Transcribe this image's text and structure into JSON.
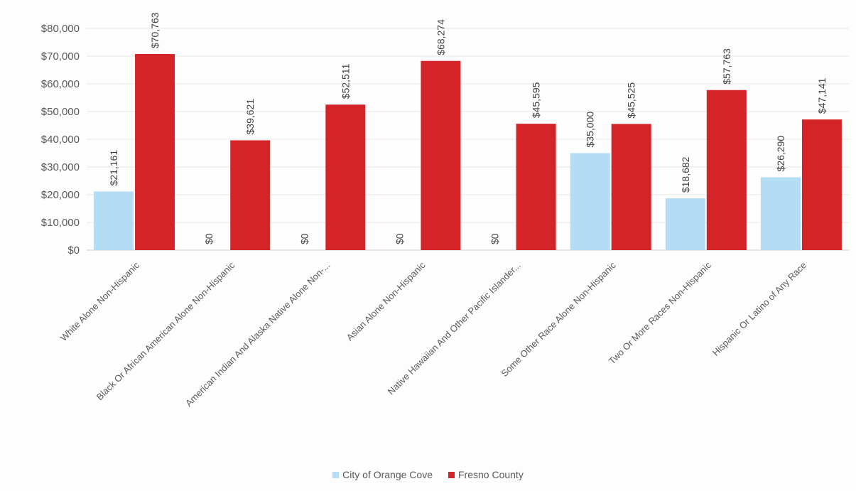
{
  "chart_data": {
    "type": "bar",
    "categories": [
      "White Alone Non-Hispanic",
      "Black Or African American Alone Non-Hispanic",
      "American Indian And Alaska Native Alone Non-...",
      "Asian Alone Non-Hispanic",
      "Native Hawaiian And Other Pacific Islander...",
      "Some Other Race Alone Non-Hispanic",
      "Two Or More Races Non-Hispanic",
      "Hispanic Or Latino of Any Race"
    ],
    "series": [
      {
        "name": "City of Orange Cove",
        "color": "#b4dcf4",
        "values": [
          21161,
          0,
          0,
          0,
          0,
          35000,
          18682,
          26290
        ],
        "labels": [
          "$21,161",
          "$0",
          "$0",
          "$0",
          "$0",
          "$35,000",
          "$18,682",
          "$26,290"
        ]
      },
      {
        "name": "Fresno County",
        "color": "#d42428",
        "values": [
          70763,
          39621,
          52511,
          68274,
          45595,
          45525,
          57763,
          47141
        ],
        "labels": [
          "$70,763",
          "$39,621",
          "$52,511",
          "$68,274",
          "$45,595",
          "$45,525",
          "$57,763",
          "$47,141"
        ]
      }
    ],
    "ylim": [
      0,
      80000
    ],
    "yticks": [
      {
        "value": 0,
        "label": "$0"
      },
      {
        "value": 10000,
        "label": "$10,000"
      },
      {
        "value": 20000,
        "label": "$20,000"
      },
      {
        "value": 30000,
        "label": "$30,000"
      },
      {
        "value": 40000,
        "label": "$40,000"
      },
      {
        "value": 50000,
        "label": "$50,000"
      },
      {
        "value": 60000,
        "label": "$60,000"
      },
      {
        "value": 70000,
        "label": "$70,000"
      },
      {
        "value": 80000,
        "label": "$80,000"
      }
    ],
    "title": "",
    "xlabel": "",
    "ylabel": "",
    "grid": true,
    "legend_position": "bottom",
    "gridline_color": "#e6e6e6",
    "axis_color": "#cfcfcf"
  }
}
